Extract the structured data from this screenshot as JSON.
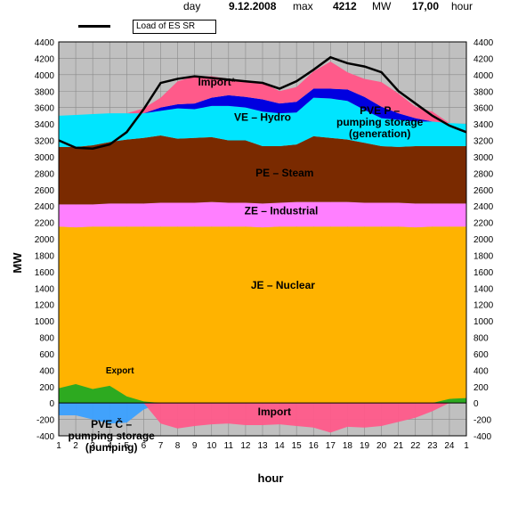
{
  "header": {
    "day_label": "day",
    "date": "9.12.2008",
    "max_label": "max",
    "max_value": "4212",
    "unit": "MW",
    "time": "17,00",
    "time_label": "hour"
  },
  "legend": {
    "load_label": "Load of ES SR"
  },
  "colors": {
    "nuclear": "#ffb300",
    "industrial": "#ff7fff",
    "steam": "#7a2a00",
    "hydro": "#00e5ff",
    "pvep": "#0000e0",
    "import": "#ff5a8a",
    "export": "#22aa22",
    "pvec": "#3aa0ff",
    "load": "#000000",
    "plot_bg": "#c0c0c0"
  },
  "chart_data": {
    "type": "area",
    "title": "",
    "xlabel": "hour",
    "ylabel": "MW",
    "x": [
      "1",
      "2",
      "3",
      "4",
      "5",
      "6",
      "7",
      "8",
      "9",
      "10",
      "11",
      "12",
      "13",
      "14",
      "15",
      "16",
      "17",
      "18",
      "19",
      "20",
      "21",
      "22",
      "23",
      "24",
      "1"
    ],
    "ylim": [
      -400,
      4400
    ],
    "yticks": [
      -400,
      -200,
      0,
      200,
      400,
      600,
      800,
      1000,
      1200,
      1400,
      1600,
      1800,
      2000,
      2200,
      2400,
      2600,
      2800,
      3000,
      3200,
      3400,
      3600,
      3800,
      4000,
      4200,
      4400
    ],
    "grid": true,
    "series": [
      {
        "name": "JE – Nuclear",
        "key": "nuclear",
        "values": [
          2150,
          2140,
          2150,
          2150,
          2150,
          2150,
          2150,
          2150,
          2150,
          2150,
          2150,
          2150,
          2140,
          2150,
          2150,
          2150,
          2150,
          2150,
          2150,
          2150,
          2150,
          2140,
          2150,
          2150,
          2150
        ]
      },
      {
        "name": "ZE – Industrial",
        "key": "industrial",
        "values": [
          270,
          280,
          270,
          280,
          280,
          280,
          290,
          290,
          290,
          300,
          290,
          290,
          290,
          290,
          300,
          300,
          300,
          300,
          290,
          290,
          290,
          290,
          280,
          280,
          280
        ]
      },
      {
        "name": "PE – Steam",
        "key": "steam",
        "values": [
          700,
          700,
          720,
          750,
          780,
          800,
          820,
          780,
          790,
          790,
          760,
          760,
          700,
          690,
          700,
          800,
          780,
          760,
          730,
          690,
          680,
          700,
          700,
          700,
          700
        ]
      },
      {
        "name": "VE – Hydro",
        "key": "hydro",
        "values": [
          380,
          390,
          380,
          350,
          320,
          300,
          300,
          370,
          350,
          380,
          420,
          400,
          420,
          400,
          390,
          470,
          480,
          470,
          400,
          340,
          330,
          300,
          300,
          280,
          270
        ]
      },
      {
        "name": "PVE P – pumping storage (generation)",
        "key": "pvep",
        "values": [
          0,
          0,
          0,
          0,
          0,
          0,
          40,
          50,
          70,
          100,
          130,
          130,
          150,
          120,
          130,
          110,
          120,
          140,
          160,
          140,
          80,
          40,
          0,
          0,
          0
        ]
      },
      {
        "name": "Import",
        "key": "import",
        "values": [
          0,
          0,
          0,
          0,
          0,
          60,
          120,
          280,
          330,
          260,
          200,
          200,
          200,
          150,
          180,
          210,
          330,
          210,
          220,
          300,
          240,
          140,
          120,
          0,
          0
        ]
      },
      {
        "name": "Export",
        "key": "export",
        "values": [
          -180,
          -230,
          -170,
          -210,
          -80,
          -20,
          0,
          0,
          0,
          0,
          0,
          0,
          0,
          0,
          0,
          0,
          0,
          0,
          0,
          0,
          0,
          0,
          0,
          -50,
          -60
        ]
      },
      {
        "name": "PVE Č – pumping storage (pumping)",
        "key": "pvec",
        "values": [
          -150,
          -150,
          -200,
          -250,
          -240,
          -80,
          0,
          0,
          0,
          0,
          0,
          0,
          0,
          0,
          0,
          0,
          0,
          0,
          0,
          0,
          0,
          0,
          0,
          0,
          0
        ]
      },
      {
        "name": "Import",
        "key": "import_low",
        "values": [
          0,
          0,
          0,
          0,
          0,
          0,
          -250,
          -310,
          -280,
          -260,
          -250,
          -270,
          -270,
          -260,
          -280,
          -300,
          -360,
          -290,
          -300,
          -280,
          -230,
          -180,
          -100,
          0,
          0
        ]
      },
      {
        "name": "Load of ES SR",
        "key": "load",
        "kind": "line",
        "values": [
          3200,
          3110,
          3100,
          3150,
          3300,
          3580,
          3900,
          3950,
          3980,
          3960,
          3940,
          3920,
          3900,
          3830,
          3920,
          4060,
          4212,
          4140,
          4100,
          4030,
          3800,
          3650,
          3500,
          3380,
          3300
        ]
      }
    ],
    "labels": {
      "import_top": "Import*",
      "hydro": "VE – Hydro",
      "pvep": "PVE P –\npumping storage\n(generation)",
      "steam": "PE – Steam",
      "industrial": "ZE – Industrial",
      "nuclear": "JE – Nuclear",
      "export": "Export",
      "import_low": "Import",
      "pvec": "PVE Č –\npumping storage\n(pumping)"
    }
  }
}
